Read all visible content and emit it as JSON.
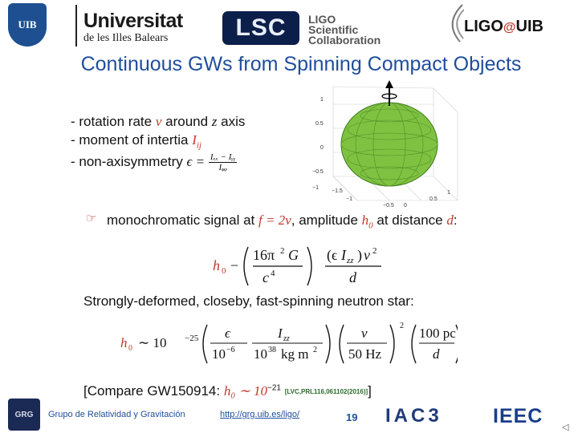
{
  "header": {
    "uib_logo_text": "UIB",
    "university_name": "Universitat",
    "university_subtitle": "de les Illes Balears",
    "lsc_logo_text": "LSC",
    "lsc_line1": "LIGO",
    "lsc_line2": "Scientific",
    "lsc_line3": "Collaboration",
    "ligo_uib_prefix": "LIGO",
    "ligo_uib_at": "@",
    "ligo_uib_suffix": "UIB"
  },
  "slide": {
    "title": "Continuous GWs from Spinning Compact Objects",
    "bullets": {
      "b1_text": "- rotation rate",
      "b1_sym": "ν",
      "b1_mid": "around",
      "b1_var": "z",
      "b1_end": "axis",
      "b2_text": "- moment of intertia",
      "b2_sym": "I",
      "b2_sub": "ij",
      "b3_text": "- non-axisymmetry",
      "b3_sym": "ϵ =",
      "b3_num": "Iₓₓ − Iᵧᵧ",
      "b3_den": "Iᵩᵩ"
    },
    "mono_line": {
      "icon": "☞",
      "text1": "monochromatic signal at",
      "f_eq": "f = 2ν",
      "text2": ", amplitude",
      "h0": "h",
      "h0_sub": "0",
      "text3": "at distance",
      "d": "d",
      "colon": ":"
    },
    "strong_line": "Strongly-deformed, closeby, fast-spinning neutron star:",
    "compare": {
      "text": "[Compare GW150914:",
      "expr": "h₀ ∼ 10",
      "exp": "−21",
      "ref": "[LVC,PRL116,061102(2016)]",
      "close": "]"
    }
  },
  "footer": {
    "grg_logo": "GRG",
    "group_name": "Grupo de Relatividad y Gravitación",
    "link": "http://grg.uib.es/ligo/",
    "page_number": "19",
    "iac_logo": "IAC3",
    "ieec_logo": "IEEC"
  },
  "colors": {
    "title": "#1f4e9c",
    "accent_red": "#c0392b",
    "star_green": "#7fc241"
  }
}
